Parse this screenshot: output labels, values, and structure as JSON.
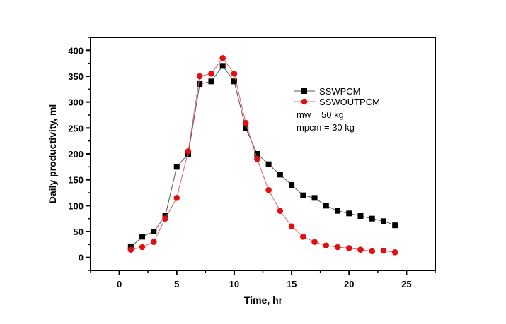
{
  "chart_data": {
    "type": "line",
    "title": "",
    "xlabel": "Time, hr",
    "ylabel": "Daily productivity, ml",
    "xlim": [
      -2.5,
      27.5
    ],
    "ylim": [
      -25,
      425
    ],
    "xticks": [
      0,
      5,
      10,
      15,
      20,
      25
    ],
    "yticks": [
      0,
      50,
      100,
      150,
      200,
      250,
      300,
      350,
      400
    ],
    "grid": false,
    "legend_position": "top-right",
    "x": [
      1,
      2,
      3,
      4,
      5,
      6,
      7,
      8,
      9,
      10,
      11,
      12,
      13,
      14,
      15,
      16,
      17,
      18,
      19,
      20,
      21,
      22,
      23,
      24
    ],
    "series": [
      {
        "name": "SSWPCM",
        "marker": "square",
        "color": "#000000",
        "line_color": "#555555",
        "values": [
          20,
          40,
          50,
          80,
          175,
          200,
          335,
          340,
          370,
          340,
          250,
          200,
          180,
          160,
          140,
          120,
          115,
          100,
          90,
          85,
          80,
          75,
          70,
          62
        ]
      },
      {
        "name": "SSWOUTPCM",
        "marker": "circle",
        "color": "#e01010",
        "line_color": "#e06060",
        "values": [
          15,
          20,
          30,
          75,
          115,
          205,
          350,
          355,
          385,
          355,
          260,
          190,
          130,
          90,
          60,
          40,
          30,
          23,
          20,
          18,
          15,
          12,
          13,
          10
        ]
      }
    ],
    "annotations": [
      "mw = 50 kg",
      "mpcm = 30 kg"
    ]
  }
}
